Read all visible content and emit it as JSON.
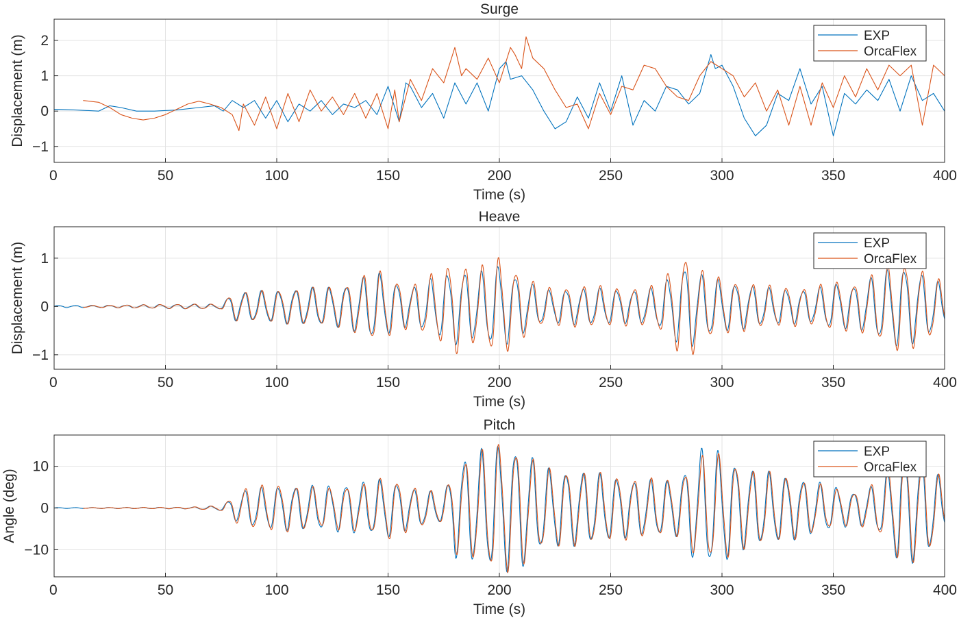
{
  "chart_data": [
    {
      "type": "line",
      "title": "Surge",
      "xlabel": "Time (s)",
      "ylabel": "Displacement (m)",
      "xlim": [
        0,
        400
      ],
      "ylim": [
        -1.45,
        2.6
      ],
      "xticks": [
        0,
        50,
        100,
        150,
        200,
        250,
        300,
        350,
        400
      ],
      "yticks": [
        -1,
        0,
        1,
        2
      ],
      "ytick_labels": [
        "−1",
        "0",
        "1",
        "2"
      ],
      "grid": true,
      "legend_position": "top-right",
      "series": [
        {
          "name": "EXP",
          "color": "#0072BD",
          "x": [
            0,
            10,
            20,
            25,
            30,
            37,
            45,
            55,
            65,
            72,
            76,
            80,
            85,
            90,
            95,
            100,
            105,
            110,
            115,
            120,
            125,
            130,
            135,
            140,
            145,
            150,
            155,
            158,
            160,
            165,
            170,
            175,
            180,
            185,
            190,
            195,
            200,
            203,
            205,
            210,
            215,
            220,
            225,
            230,
            235,
            240,
            245,
            250,
            255,
            260,
            265,
            270,
            275,
            280,
            285,
            290,
            295,
            297,
            300,
            305,
            310,
            315,
            320,
            325,
            330,
            335,
            340,
            345,
            350,
            355,
            360,
            365,
            370,
            375,
            380,
            385,
            390,
            395,
            400
          ],
          "y": [
            0.05,
            0.03,
            0.0,
            0.15,
            0.1,
            0.0,
            0.0,
            0.03,
            0.1,
            0.15,
            0.0,
            0.3,
            0.1,
            0.3,
            -0.2,
            0.3,
            -0.3,
            0.2,
            0.0,
            0.3,
            -0.1,
            0.2,
            0.1,
            0.3,
            -0.1,
            0.7,
            -0.3,
            0.8,
            0.7,
            0.1,
            0.5,
            -0.2,
            0.8,
            0.2,
            0.8,
            0.0,
            1.2,
            1.4,
            0.9,
            1.0,
            0.6,
            0.0,
            -0.5,
            -0.3,
            0.4,
            -0.2,
            0.8,
            0.0,
            1.0,
            -0.4,
            0.3,
            0.0,
            0.7,
            0.6,
            0.2,
            0.5,
            1.6,
            1.2,
            1.3,
            0.7,
            -0.2,
            -0.7,
            -0.4,
            0.5,
            0.3,
            1.2,
            0.2,
            0.7,
            -0.7,
            0.5,
            0.2,
            0.6,
            0.3,
            0.9,
            0.0,
            1.0,
            0.3,
            0.5,
            0.0
          ]
        },
        {
          "name": "OrcaFlex",
          "color": "#D95319",
          "x": [
            13,
            20,
            25,
            30,
            35,
            40,
            45,
            50,
            55,
            60,
            65,
            70,
            75,
            80,
            83,
            85,
            90,
            95,
            100,
            105,
            110,
            115,
            120,
            125,
            130,
            135,
            140,
            145,
            150,
            153,
            155,
            160,
            165,
            170,
            175,
            180,
            183,
            185,
            190,
            195,
            200,
            205,
            207,
            210,
            212,
            215,
            220,
            225,
            230,
            235,
            240,
            245,
            250,
            255,
            260,
            265,
            270,
            275,
            280,
            285,
            290,
            295,
            300,
            305,
            310,
            315,
            320,
            325,
            330,
            335,
            340,
            345,
            350,
            355,
            360,
            365,
            370,
            375,
            380,
            385,
            390,
            395,
            400
          ],
          "y": [
            0.3,
            0.25,
            0.1,
            -0.1,
            -0.2,
            -0.25,
            -0.2,
            -0.1,
            0.05,
            0.2,
            0.28,
            0.2,
            0.1,
            -0.1,
            -0.55,
            0.2,
            -0.4,
            0.4,
            -0.5,
            0.5,
            -0.3,
            0.6,
            0.0,
            0.4,
            -0.1,
            0.5,
            -0.2,
            0.5,
            -0.5,
            0.6,
            -0.3,
            0.9,
            0.3,
            1.2,
            0.8,
            1.8,
            1.0,
            1.2,
            0.9,
            1.5,
            0.8,
            1.8,
            1.6,
            1.2,
            2.1,
            1.5,
            1.2,
            0.6,
            0.1,
            0.2,
            -0.5,
            0.5,
            -0.1,
            0.7,
            0.6,
            1.3,
            1.2,
            0.7,
            0.4,
            0.3,
            1.0,
            1.4,
            1.2,
            1.0,
            0.4,
            0.8,
            0.0,
            0.6,
            -0.4,
            0.7,
            -0.4,
            0.8,
            0.1,
            1.0,
            0.4,
            1.2,
            0.6,
            1.3,
            1.0,
            1.3,
            -0.4,
            1.3,
            1.0
          ]
        }
      ]
    },
    {
      "type": "line",
      "title": "Heave",
      "xlabel": "Time (s)",
      "ylabel": "Displacement (m)",
      "xlim": [
        0,
        400
      ],
      "ylim": [
        -1.3,
        1.65
      ],
      "xticks": [
        0,
        50,
        100,
        150,
        200,
        250,
        300,
        350,
        400
      ],
      "yticks": [
        -1,
        0,
        1
      ],
      "ytick_labels": [
        "−1",
        "0",
        "1"
      ],
      "grid": true,
      "legend_position": "top-right",
      "series": [
        {
          "name": "EXP",
          "color": "#0072BD",
          "amplitude_envelope": {
            "t": [
              0,
              30,
              60,
              75,
              80,
              100,
              130,
              145,
              150,
              160,
              170,
              180,
              190,
              200,
              210,
              220,
              240,
              260,
              270,
              285,
              290,
              300,
              320,
              340,
              350,
              360,
              370,
              380,
              390,
              400
            ],
            "a": [
              0.02,
              0.03,
              0.05,
              0.05,
              0.3,
              0.35,
              0.45,
              0.75,
              0.6,
              0.4,
              0.6,
              0.8,
              0.7,
              0.9,
              0.6,
              0.35,
              0.4,
              0.35,
              0.4,
              0.95,
              0.7,
              0.55,
              0.4,
              0.35,
              0.5,
              0.45,
              0.7,
              0.9,
              0.7,
              0.45
            ]
          }
        },
        {
          "name": "OrcaFlex",
          "color": "#D95319",
          "amplitude_envelope": {
            "t": [
              13,
              30,
              60,
              75,
              80,
              100,
              130,
              145,
              150,
              160,
              170,
              180,
              190,
              200,
              210,
              220,
              240,
              260,
              270,
              285,
              290,
              300,
              320,
              340,
              350,
              360,
              370,
              380,
              390,
              400
            ],
            "a": [
              0.02,
              0.03,
              0.05,
              0.05,
              0.3,
              0.35,
              0.45,
              0.8,
              0.65,
              0.45,
              0.7,
              1.0,
              0.8,
              1.1,
              0.7,
              0.4,
              0.45,
              0.4,
              0.45,
              1.2,
              0.8,
              0.6,
              0.45,
              0.4,
              0.55,
              0.5,
              0.75,
              1.0,
              0.8,
              0.5
            ]
          }
        }
      ]
    },
    {
      "type": "line",
      "title": "Pitch",
      "xlabel": "Time (s)",
      "ylabel": "Angle (deg)",
      "xlim": [
        0,
        400
      ],
      "ylim": [
        -16.5,
        17.5
      ],
      "xticks": [
        0,
        50,
        100,
        150,
        200,
        250,
        300,
        350,
        400
      ],
      "yticks": [
        -10,
        0,
        10
      ],
      "ytick_labels": [
        "−10",
        "0",
        "10"
      ],
      "grid": true,
      "legend_position": "top-right",
      "series": [
        {
          "name": "EXP",
          "color": "#0072BD",
          "amplitude_envelope": {
            "t": [
              0,
              60,
              75,
              85,
              100,
              120,
              140,
              150,
              160,
              175,
              180,
              190,
              200,
              210,
              220,
              240,
              260,
              280,
              290,
              300,
              310,
              330,
              350,
              360,
              370,
              380,
              390,
              400
            ],
            "a": [
              0.1,
              0.2,
              0.6,
              4.5,
              5.5,
              5.5,
              6.5,
              7.5,
              5.0,
              3.5,
              12.0,
              14.0,
              16.0,
              15.0,
              10.0,
              9.0,
              7.0,
              7.0,
              15.0,
              14.0,
              10.0,
              8.0,
              5.5,
              4.0,
              6.0,
              14.0,
              13.0,
              6.0
            ]
          }
        },
        {
          "name": "OrcaFlex",
          "color": "#D95319",
          "amplitude_envelope": {
            "t": [
              13,
              60,
              75,
              85,
              100,
              120,
              140,
              150,
              160,
              175,
              180,
              190,
              200,
              210,
              220,
              240,
              260,
              280,
              290,
              300,
              310,
              330,
              350,
              360,
              370,
              380,
              390,
              400
            ],
            "a": [
              0.1,
              0.2,
              0.6,
              5.0,
              6.0,
              5.0,
              6.0,
              8.0,
              5.5,
              3.5,
              11.0,
              13.5,
              16.5,
              14.5,
              10.0,
              9.0,
              7.5,
              7.0,
              13.0,
              13.5,
              10.0,
              8.0,
              5.0,
              4.0,
              6.5,
              13.5,
              13.0,
              6.5
            ]
          }
        }
      ]
    }
  ]
}
